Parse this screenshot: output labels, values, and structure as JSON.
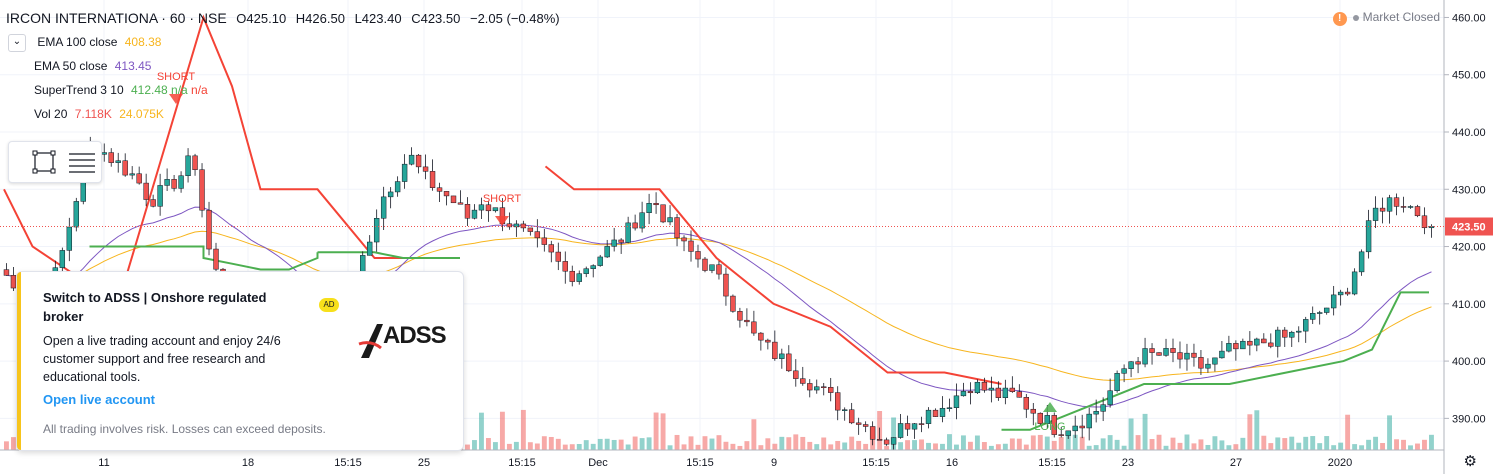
{
  "header": {
    "symbol": "IRCON INTERNATIONA · 60 · NSE",
    "open": "O425.10",
    "high": "H426.50",
    "low": "L423.40",
    "close": "C423.50",
    "change": "−2.05 (−0.48%)"
  },
  "legend": {
    "collapse_icon": "chevron-down-icon",
    "ema100": {
      "label": "EMA 100 close",
      "value": "408.38",
      "color": "#f7b51e"
    },
    "ema50": {
      "label": "EMA 50 close",
      "value": "413.45",
      "color": "#7e57c2"
    },
    "supertrend": {
      "label": "SuperTrend 3 10",
      "value": "412.48",
      "na1": "n/a",
      "na2": "n/a"
    },
    "volume": {
      "label": "Vol 20",
      "value1": "7.118K",
      "value2": "24.075K"
    }
  },
  "market_status": "Market Closed",
  "current_price_label": "423.50",
  "ad": {
    "title": "Switch to ADSS | Onshore regulated broker",
    "badge": "AD",
    "description": "Open a live trading account and enjoy 24/6 customer support and free research and educational tools.",
    "cta": "Open live account",
    "disclaimer": "All trading involves risk. Losses can exceed deposits.",
    "logo_text": "ADSS"
  },
  "colors": {
    "up": "#26a69a",
    "down": "#ef5350",
    "supertrend_up": "#4caf50",
    "supertrend_down": "#f44336",
    "ema100": "#f7b51e",
    "ema50": "#7e57c2",
    "price_line": "#ef5350"
  },
  "chart_data": {
    "type": "candlestick",
    "y_axis": {
      "min": 385,
      "max": 462,
      "ticks": [
        "460.00",
        "450.00",
        "440.00",
        "430.00",
        "420.00",
        "410.00",
        "400.00",
        "390.00"
      ]
    },
    "x_axis": {
      "ticks": [
        "11",
        "18",
        "15:15",
        "25",
        "15:15",
        "Dec",
        "15:15",
        "9",
        "15:15",
        "16",
        "15:15",
        "23",
        "27",
        "2020"
      ]
    },
    "close_path": [
      415,
      410,
      405,
      412,
      420,
      430,
      438,
      436,
      434,
      432,
      428,
      430,
      432,
      436,
      420,
      412,
      410,
      408,
      412,
      405,
      402,
      398,
      400,
      405,
      412,
      420,
      428,
      432,
      436,
      432,
      430,
      428,
      425,
      428,
      426,
      424,
      422,
      420,
      418,
      415,
      416,
      418,
      420,
      422,
      426,
      428,
      424,
      420,
      418,
      416,
      412,
      408,
      404,
      402,
      400,
      398,
      396,
      394,
      392,
      390,
      388,
      386,
      388,
      390,
      391,
      392,
      394,
      396,
      395,
      394,
      394,
      392,
      390,
      388,
      389,
      390,
      392,
      396,
      400,
      401,
      401,
      401,
      400,
      399,
      400,
      402,
      402,
      403,
      404,
      404,
      406,
      408,
      410,
      412,
      418,
      426,
      428,
      428,
      426,
      423.5
    ],
    "supertrend": [
      {
        "dir": "down",
        "points": [
          [
            0,
            430
          ],
          [
            2,
            420
          ],
          [
            8,
            410
          ],
          [
            14,
            460
          ],
          [
            16,
            448
          ],
          [
            18,
            430
          ],
          [
            22,
            430
          ],
          [
            26,
            418
          ],
          [
            30,
            418
          ]
        ]
      },
      {
        "dir": "up",
        "points": [
          [
            6,
            420
          ],
          [
            14,
            420
          ],
          [
            14,
            418
          ],
          [
            16,
            417
          ],
          [
            18,
            416
          ],
          [
            20,
            416
          ],
          [
            22,
            418
          ],
          [
            22,
            419
          ]
        ]
      },
      {
        "dir": "up",
        "points": [
          [
            22,
            419
          ],
          [
            26,
            419
          ],
          [
            28,
            418
          ],
          [
            32,
            418
          ]
        ]
      },
      {
        "dir": "down",
        "points": [
          [
            38,
            434
          ],
          [
            40,
            430
          ],
          [
            46,
            430
          ],
          [
            50,
            418
          ],
          [
            54,
            410
          ],
          [
            58,
            406
          ],
          [
            62,
            398
          ],
          [
            66,
            398
          ],
          [
            70,
            396
          ]
        ]
      },
      {
        "dir": "up",
        "points": [
          [
            70,
            388
          ],
          [
            72,
            388
          ],
          [
            76,
            392
          ],
          [
            80,
            396
          ],
          [
            86,
            396
          ],
          [
            90,
            398
          ],
          [
            94,
            400
          ],
          [
            96,
            402
          ],
          [
            98,
            412
          ],
          [
            100,
            412
          ]
        ]
      }
    ],
    "annotations": [
      {
        "label": "SHORT"
      },
      {
        "label": "SHORT"
      },
      {
        "label": "LONG"
      }
    ]
  }
}
